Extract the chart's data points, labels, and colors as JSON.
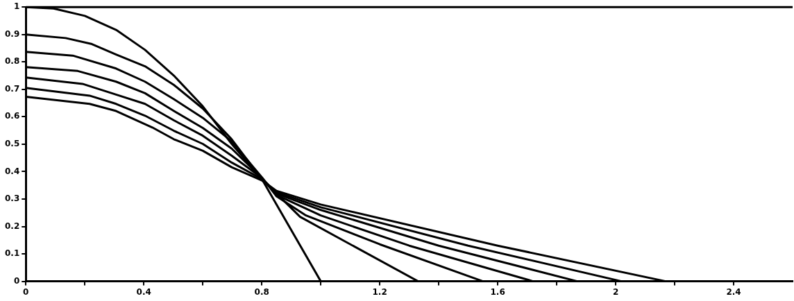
{
  "chart_data": {
    "type": "line",
    "xlim": [
      0,
      2.6
    ],
    "ylim": [
      0,
      1
    ],
    "xticks": [
      0,
      {
        "value": 0.2,
        "label": null
      },
      0.4,
      {
        "value": 0.6,
        "label": null
      },
      0.8,
      {
        "value": 1.0,
        "label": null
      },
      1.2,
      {
        "value": 1.4,
        "label": null
      },
      1.6,
      {
        "value": 1.8,
        "label": null
      },
      2,
      {
        "value": 2.2,
        "label": null
      },
      2.4
    ],
    "yticks": [
      0,
      0.1,
      0.2,
      0.3,
      0.4,
      0.5,
      0.6,
      0.7,
      0.8,
      0.9,
      1
    ],
    "grid": false,
    "legend": false,
    "marker": "none",
    "line_style": "solid",
    "series": [
      {
        "color": "#000000",
        "x": [
          0,
          0.094,
          0.2,
          0.306,
          0.404,
          0.502,
          0.6,
          0.698,
          0.8,
          1.0
        ],
        "values": [
          1.0,
          0.995,
          0.968,
          0.917,
          0.844,
          0.75,
          0.638,
          0.501,
          0.373,
          0
        ]
      },
      {
        "color": "#000000",
        "x": [
          0,
          0.135,
          0.224,
          0.306,
          0.404,
          0.502,
          0.6,
          0.698,
          0.8,
          0.93,
          1.33
        ],
        "values": [
          0.9,
          0.887,
          0.865,
          0.827,
          0.784,
          0.716,
          0.63,
          0.518,
          0.373,
          0.235,
          0
        ]
      },
      {
        "color": "#000000",
        "x": [
          0,
          0.159,
          0.306,
          0.404,
          0.502,
          0.6,
          0.698,
          0.8,
          0.85,
          0.95,
          1.2,
          1.55
        ],
        "values": [
          0.837,
          0.823,
          0.776,
          0.728,
          0.664,
          0.596,
          0.51,
          0.38,
          0.31,
          0.24,
          0.135,
          0
        ]
      },
      {
        "color": "#000000",
        "x": [
          0,
          0.176,
          0.306,
          0.404,
          0.502,
          0.6,
          0.698,
          0.8,
          0.85,
          1.0,
          1.3,
          1.72
        ],
        "values": [
          0.781,
          0.767,
          0.728,
          0.686,
          0.621,
          0.559,
          0.484,
          0.377,
          0.315,
          0.24,
          0.13,
          0
        ]
      },
      {
        "color": "#000000",
        "x": [
          0,
          0.192,
          0.306,
          0.404,
          0.502,
          0.6,
          0.698,
          0.8,
          0.85,
          1.0,
          1.4,
          1.87
        ],
        "values": [
          0.743,
          0.72,
          0.681,
          0.647,
          0.587,
          0.531,
          0.458,
          0.377,
          0.32,
          0.26,
          0.13,
          0
        ]
      },
      {
        "color": "#000000",
        "x": [
          0,
          0.216,
          0.306,
          0.404,
          0.502,
          0.6,
          0.698,
          0.8,
          0.85,
          1.0,
          1.5,
          2.02
        ],
        "values": [
          0.705,
          0.677,
          0.647,
          0.604,
          0.549,
          0.501,
          0.433,
          0.373,
          0.325,
          0.27,
          0.13,
          0
        ]
      },
      {
        "color": "#000000",
        "x": [
          0,
          0.216,
          0.306,
          0.429,
          0.502,
          0.6,
          0.698,
          0.8,
          0.85,
          1.0,
          1.6,
          2.17
        ],
        "values": [
          0.673,
          0.647,
          0.621,
          0.561,
          0.518,
          0.476,
          0.416,
          0.368,
          0.33,
          0.28,
          0.13,
          0
        ]
      }
    ]
  }
}
